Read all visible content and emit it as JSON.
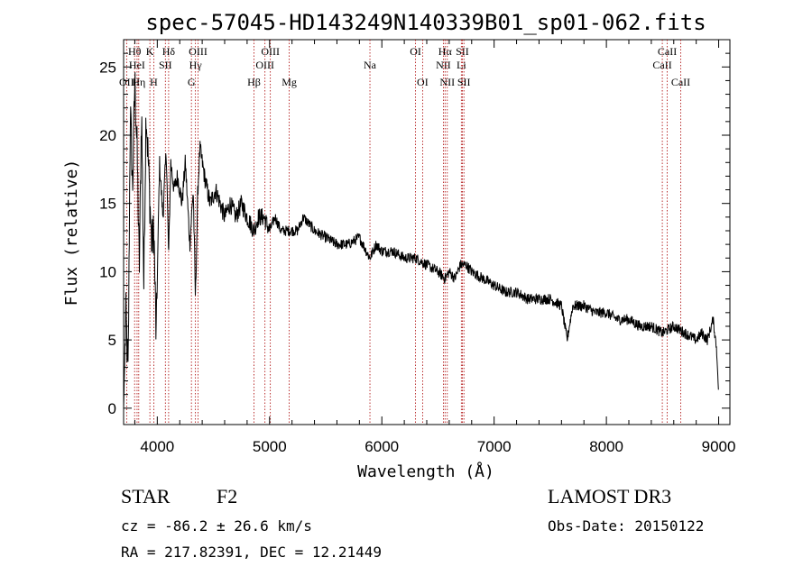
{
  "chart_data": {
    "type": "line",
    "title": "spec-57045-HD143249N140339B01_sp01-062.fits",
    "xlabel": "Wavelength (Å)",
    "ylabel": "Flux (relative)",
    "xlim": [
      3700,
      9100
    ],
    "ylim": [
      -1.2,
      27
    ],
    "xticks": [
      4000,
      5000,
      6000,
      7000,
      8000,
      9000
    ],
    "yticks": [
      0,
      5,
      10,
      15,
      20,
      25
    ],
    "grid": false,
    "series": [
      {
        "name": "flux",
        "x": [
          3700,
          3720,
          3740,
          3760,
          3780,
          3800,
          3820,
          3840,
          3860,
          3880,
          3900,
          3920,
          3950,
          3970,
          3990,
          4020,
          4050,
          4080,
          4101,
          4120,
          4150,
          4180,
          4220,
          4250,
          4290,
          4320,
          4340,
          4361,
          4380,
          4420,
          4470,
          4520,
          4560,
          4600,
          4650,
          4700,
          4750,
          4800,
          4861,
          4900,
          4950,
          5000,
          5050,
          5100,
          5150,
          5200,
          5250,
          5300,
          5400,
          5500,
          5600,
          5700,
          5800,
          5893,
          5950,
          6000,
          6100,
          6200,
          6300,
          6400,
          6500,
          6563,
          6600,
          6650,
          6700,
          6750,
          6800,
          6900,
          7000,
          7100,
          7200,
          7300,
          7400,
          7500,
          7600,
          7650,
          7700,
          7800,
          7900,
          8000,
          8100,
          8200,
          8300,
          8400,
          8500,
          8600,
          8700,
          8800,
          8850,
          8900,
          8950,
          8980,
          9000
        ],
        "y": [
          0,
          7,
          2,
          22,
          16,
          24,
          19,
          10,
          22,
          9,
          22,
          18,
          12,
          13,
          5,
          18,
          14,
          19,
          11,
          18,
          16,
          17,
          15,
          18,
          12,
          16,
          8,
          16,
          19,
          17,
          15,
          16,
          15,
          14,
          15,
          14,
          15,
          14,
          13,
          14,
          14,
          13,
          14,
          13,
          13,
          13,
          13,
          14,
          13,
          12.5,
          12,
          12,
          12.5,
          11,
          12,
          11.5,
          11.5,
          11,
          11,
          10.5,
          10,
          9.5,
          10,
          9.5,
          10.5,
          10.5,
          10,
          9.5,
          9,
          8.5,
          8.5,
          8,
          8,
          8,
          7.5,
          5,
          7.5,
          7.5,
          7,
          7,
          6.5,
          6.5,
          6,
          6,
          5.5,
          6,
          5.5,
          5,
          5.5,
          5,
          6.5,
          4.5,
          1
        ]
      }
    ],
    "lines": [
      {
        "label": "OII",
        "wl": 3727,
        "row": 3
      },
      {
        "label": "Hθ",
        "wl": 3798,
        "row": 1
      },
      {
        "label": "HeI",
        "wl": 3820,
        "row": 2
      },
      {
        "label": "Hη",
        "wl": 3835,
        "row": 3
      },
      {
        "label": "K",
        "wl": 3934,
        "row": 1
      },
      {
        "label": "H",
        "wl": 3969,
        "row": 3
      },
      {
        "label": "SII",
        "wl": 4072,
        "row": 2
      },
      {
        "label": "Hδ",
        "wl": 4101,
        "row": 1
      },
      {
        "label": "G",
        "wl": 4304,
        "row": 3
      },
      {
        "label": "Hγ",
        "wl": 4340,
        "row": 2
      },
      {
        "label": "OIII",
        "wl": 4363,
        "row": 1
      },
      {
        "label": "Hβ",
        "wl": 4861,
        "row": 3
      },
      {
        "label": "OIII",
        "wl": 4959,
        "row": 2
      },
      {
        "label": "OIII",
        "wl": 5007,
        "row": 1
      },
      {
        "label": "Mg",
        "wl": 5175,
        "row": 3
      },
      {
        "label": "Na",
        "wl": 5894,
        "row": 2
      },
      {
        "label": "OI",
        "wl": 6300,
        "row": 1
      },
      {
        "label": "OI",
        "wl": 6363,
        "row": 3
      },
      {
        "label": "NII",
        "wl": 6548,
        "row": 2
      },
      {
        "label": "Hα",
        "wl": 6563,
        "row": 1
      },
      {
        "label": "NII",
        "wl": 6583,
        "row": 3
      },
      {
        "label": "Li",
        "wl": 6708,
        "row": 2
      },
      {
        "label": "SII",
        "wl": 6717,
        "row": 1
      },
      {
        "label": "SII",
        "wl": 6731,
        "row": 3
      },
      {
        "label": "CaII",
        "wl": 8498,
        "row": 2
      },
      {
        "label": "CaII",
        "wl": 8542,
        "row": 1
      },
      {
        "label": "CaII",
        "wl": 8662,
        "row": 3
      }
    ],
    "line_color": "#aa0000"
  },
  "info": {
    "class_label": "STAR",
    "subclass": "F2",
    "survey": "LAMOST DR3",
    "redshift": "cz = -86.2 ± 26.6 km/s",
    "obs_date": "Obs-Date: 20150122",
    "coords": "RA = 217.82391, DEC =  12.21449"
  }
}
